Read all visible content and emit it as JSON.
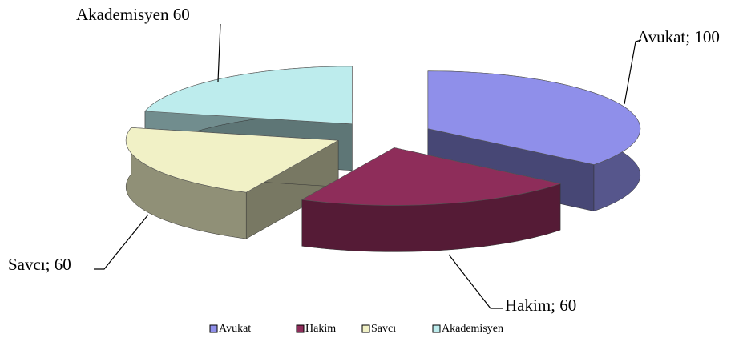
{
  "chart_data": {
    "type": "pie",
    "categories": [
      "Avukat",
      "Hakim",
      "Savcı",
      "Akademisyen"
    ],
    "values": [
      100,
      60,
      60,
      60
    ],
    "value_labels": [
      "Avukat; 100",
      "Hakim; 60",
      "Savcı; 60",
      "Akademisyen 60"
    ],
    "colors": [
      "#8f8fea",
      "#8e2d5a",
      "#f1f1c6",
      "#bdeced"
    ],
    "legend": "bottom"
  }
}
